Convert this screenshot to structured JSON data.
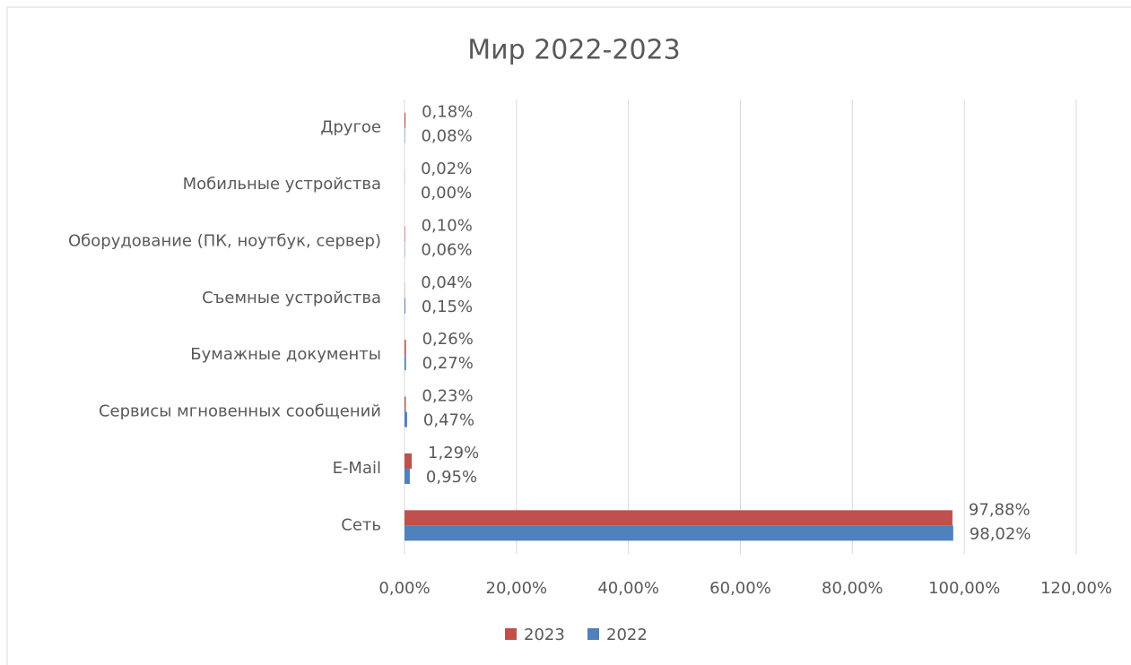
{
  "chart_data": {
    "type": "hbar",
    "title": "Мир 2022-2023",
    "categories": [
      "Другое",
      "Мобильные устройства",
      "Оборудование (ПК, ноутбук, сервер)",
      "Съемные устройства",
      "Бумажные документы",
      "Сервисы мгновенных сообщений",
      "E-Mail",
      "Сеть"
    ],
    "series": [
      {
        "name": "2023",
        "color": "#c0504d",
        "values": [
          0.18,
          0.02,
          0.1,
          0.04,
          0.26,
          0.23,
          1.29,
          97.88
        ],
        "value_labels": [
          "0,18%",
          "0,02%",
          "0,10%",
          "0,04%",
          "0,26%",
          "0,23%",
          "1,29%",
          "97,88%"
        ]
      },
      {
        "name": "2022",
        "color": "#4f81bd",
        "values": [
          0.08,
          0.0,
          0.06,
          0.15,
          0.27,
          0.47,
          0.95,
          98.02
        ],
        "value_labels": [
          "0,08%",
          "0,00%",
          "0,06%",
          "0,15%",
          "0,27%",
          "0,47%",
          "0,95%",
          "98,02%"
        ]
      }
    ],
    "xlim": [
      0,
      120
    ],
    "xticks": [
      {
        "value": 0,
        "label": "0,00%"
      },
      {
        "value": 20,
        "label": "20,00%"
      },
      {
        "value": 40,
        "label": "40,00%"
      },
      {
        "value": 60,
        "label": "60,00%"
      },
      {
        "value": 80,
        "label": "80,00%"
      },
      {
        "value": 100,
        "label": "100,00%"
      },
      {
        "value": 120,
        "label": "120,00%"
      }
    ],
    "grid": true,
    "legend": "bottom"
  }
}
